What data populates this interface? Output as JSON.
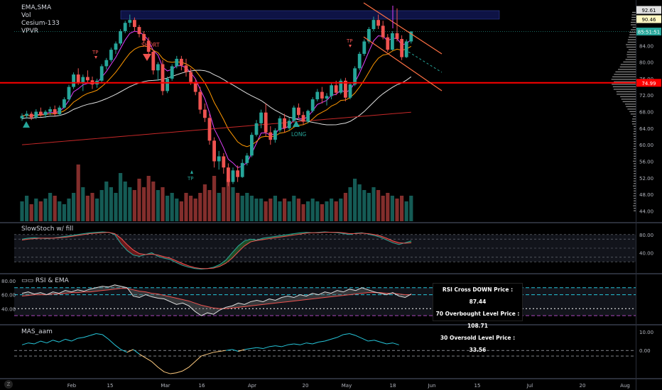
{
  "legend": {
    "indicator_1": "EMA,SMA",
    "indicator_2": "Vol",
    "indicator_3": "Cesium-133",
    "indicator_4": "VPVR",
    "stoch_title": "SlowStoch w/ fill",
    "rsi_title": "RSI & EMA",
    "mas_title": "MAS_aam"
  },
  "badges": {
    "top1": "92.61",
    "top2": "90.46",
    "last": "85:51:51",
    "hline": "74.99"
  },
  "annotations": {
    "tp1": "TP",
    "short": "SHORT",
    "tp2": "TP",
    "long": "LONG",
    "tp3": "TP"
  },
  "info": {
    "line1": "RSI Cross DOWN Price : 87.44",
    "line2": "70 Overbought Level Price : 108.71",
    "line3": "30 Oversold Level Price : 33.56"
  },
  "colors": {
    "up": "#26a69a",
    "down": "#ef5350",
    "hline": "#ff0000",
    "ema_fast": "#e040fb",
    "ema_mid": "#ff9800",
    "sma_white": "#e0e0e0",
    "sma_red": "#c62828",
    "channel": "#ff7043",
    "rsi_level": "#26c6da",
    "rsi_oversold": "#ab47bc",
    "mas_line": "#26c6da"
  },
  "chart_data": {
    "type": "candlestick",
    "x_axis_labels": [
      "Feb",
      "15",
      "Mar",
      "16",
      "Apr",
      "20",
      "May",
      "18",
      "Jun",
      "15",
      "Jul",
      "20",
      "Aug"
    ],
    "price_axis_ticks": [
      "84.00",
      "80.00",
      "76.00",
      "72.00",
      "68.00",
      "64.00",
      "60.00",
      "56.00",
      "52.00",
      "48.00",
      "44.00"
    ],
    "price_range": [
      41.5,
      94
    ],
    "horizontal_level": 74.99,
    "candles": [
      [
        66.4,
        67.6,
        65.8,
        67.0
      ],
      [
        67.0,
        68.2,
        66.3,
        67.5
      ],
      [
        67.5,
        68.0,
        66.0,
        66.6
      ],
      [
        66.6,
        68.6,
        66.2,
        68.0
      ],
      [
        68.0,
        69.0,
        66.8,
        67.2
      ],
      [
        67.2,
        68.4,
        66.5,
        68.0
      ],
      [
        68.0,
        69.2,
        67.2,
        68.6
      ],
      [
        68.6,
        69.5,
        67.0,
        67.4
      ],
      [
        67.4,
        69.5,
        67.0,
        69.0
      ],
      [
        69.0,
        71.5,
        68.8,
        71.0
      ],
      [
        71.0,
        74.5,
        70.5,
        74.0
      ],
      [
        74.0,
        77.5,
        73.5,
        77.0
      ],
      [
        77.0,
        78.5,
        74.5,
        75.0
      ],
      [
        75.0,
        77.0,
        73.0,
        76.4
      ],
      [
        76.4,
        78.0,
        75.0,
        75.6
      ],
      [
        75.6,
        76.5,
        73.5,
        74.6
      ],
      [
        74.6,
        76.0,
        73.8,
        75.5
      ],
      [
        75.5,
        79.5,
        75.0,
        79.0
      ],
      [
        79.0,
        81.0,
        78.2,
        80.5
      ],
      [
        80.5,
        83.5,
        80.0,
        83.0
      ],
      [
        83.0,
        85.0,
        82.0,
        84.5
      ],
      [
        84.5,
        88.0,
        84.0,
        87.5
      ],
      [
        87.5,
        90.0,
        87.0,
        89.5
      ],
      [
        89.5,
        91.5,
        88.5,
        90.2
      ],
      [
        90.2,
        90.8,
        87.5,
        88.5
      ],
      [
        88.5,
        89.0,
        86.0,
        86.8
      ],
      [
        86.8,
        87.5,
        84.5,
        85.2
      ],
      [
        85.2,
        86.0,
        82.0,
        82.5
      ],
      [
        82.5,
        83.0,
        77.0,
        78.0
      ],
      [
        78.0,
        80.0,
        75.5,
        79.5
      ],
      [
        79.5,
        80.5,
        72.0,
        73.0
      ],
      [
        73.0,
        76.5,
        72.5,
        76.0
      ],
      [
        76.0,
        79.5,
        75.5,
        79.0
      ],
      [
        79.0,
        81.5,
        78.5,
        80.8
      ],
      [
        80.8,
        81.5,
        78.0,
        79.2
      ],
      [
        79.2,
        80.8,
        76.5,
        77.6
      ],
      [
        77.6,
        78.5,
        74.5,
        75.2
      ],
      [
        75.2,
        76.0,
        72.0,
        72.8
      ],
      [
        72.8,
        74.0,
        67.5,
        68.5
      ],
      [
        68.5,
        70.0,
        65.5,
        66.5
      ],
      [
        66.5,
        67.5,
        60.0,
        61.0
      ],
      [
        61.0,
        61.8,
        54.5,
        56.0
      ],
      [
        56.0,
        58.5,
        54.0,
        57.2
      ],
      [
        57.2,
        58.0,
        53.0,
        54.5
      ],
      [
        54.5,
        55.5,
        50.0,
        51.0
      ],
      [
        51.0,
        54.5,
        50.5,
        53.8
      ],
      [
        53.8,
        55.0,
        51.0,
        52.2
      ],
      [
        52.2,
        56.5,
        52.0,
        55.6
      ],
      [
        55.6,
        58.0,
        55.0,
        57.4
      ],
      [
        57.4,
        63.0,
        57.0,
        62.4
      ],
      [
        62.4,
        66.0,
        62.0,
        65.2
      ],
      [
        65.2,
        68.5,
        64.0,
        67.8
      ],
      [
        67.8,
        70.0,
        62.0,
        63.0
      ],
      [
        63.0,
        64.5,
        60.0,
        61.2
      ],
      [
        61.2,
        64.0,
        60.5,
        63.5
      ],
      [
        63.5,
        67.0,
        63.0,
        66.4
      ],
      [
        66.4,
        67.5,
        63.0,
        64.0
      ],
      [
        64.0,
        66.5,
        63.5,
        65.8
      ],
      [
        65.8,
        69.5,
        65.5,
        69.0
      ],
      [
        69.0,
        70.0,
        66.5,
        67.2
      ],
      [
        67.2,
        68.0,
        64.8,
        65.6
      ],
      [
        65.6,
        68.5,
        65.2,
        68.2
      ],
      [
        68.2,
        71.5,
        67.8,
        71.0
      ],
      [
        71.0,
        73.5,
        70.5,
        72.8
      ],
      [
        72.8,
        74.0,
        70.0,
        71.2
      ],
      [
        71.2,
        72.5,
        69.5,
        71.8
      ],
      [
        71.8,
        75.0,
        71.0,
        74.4
      ],
      [
        74.4,
        75.5,
        72.0,
        72.6
      ],
      [
        72.6,
        76.0,
        72.2,
        75.5
      ],
      [
        75.5,
        76.2,
        70.5,
        71.4
      ],
      [
        71.4,
        75.0,
        71.0,
        74.6
      ],
      [
        74.6,
        79.0,
        74.2,
        78.5
      ],
      [
        78.5,
        82.5,
        78.0,
        82.0
      ],
      [
        82.0,
        85.5,
        81.5,
        85.0
      ],
      [
        85.0,
        88.5,
        84.5,
        88.0
      ],
      [
        88.0,
        91.0,
        87.5,
        90.2
      ],
      [
        90.2,
        91.5,
        88.0,
        88.8
      ],
      [
        88.8,
        90.0,
        85.5,
        86.0
      ],
      [
        86.0,
        86.8,
        82.5,
        83.0
      ],
      [
        83.0,
        87.5,
        82.8,
        87.0
      ],
      [
        87.0,
        93.0,
        85.0,
        85.6
      ],
      [
        85.6,
        86.5,
        80.5,
        81.2
      ],
      [
        81.2,
        85.5,
        81.0,
        85.0
      ],
      [
        85.0,
        87.5,
        84.5,
        87.4
      ]
    ],
    "volume": [
      3.5,
      4.5,
      3,
      4,
      3.5,
      4,
      5,
      4.5,
      3.5,
      3,
      4,
      5,
      10,
      6,
      4.5,
      5,
      4,
      5.5,
      7,
      6,
      5,
      8.5,
      7,
      6,
      5.5,
      7.5,
      6,
      8,
      7,
      5.5,
      6,
      4.5,
      5,
      4,
      3.5,
      5,
      4.5,
      4,
      5,
      6.5,
      5.5,
      8,
      5,
      6,
      7.5,
      6,
      5,
      4.5,
      5,
      4.5,
      4,
      4,
      3.5,
      4,
      4.5,
      3.5,
      4,
      3.5,
      4.5,
      4,
      3,
      3.5,
      4,
      3.5,
      3,
      3.5,
      4,
      3.5,
      4,
      5,
      6,
      7.5,
      6.5,
      5.5,
      5,
      6,
      5.5,
      4.5,
      5,
      4.5,
      4,
      4.5,
      3.5,
      4.5
    ],
    "stoch_axis_ticks": [
      "80.00",
      "40.00"
    ],
    "stoch_range": [
      0,
      100
    ],
    "stoch_k": [
      70,
      72,
      73,
      72,
      71,
      72,
      74,
      76,
      78,
      80,
      82,
      84,
      85,
      86,
      85,
      80,
      60,
      45,
      35,
      32,
      36,
      40,
      32,
      28,
      25,
      18,
      12,
      8,
      5,
      4,
      5,
      8,
      14,
      24,
      40,
      55,
      66,
      70,
      68,
      72,
      74,
      76,
      78,
      80,
      82,
      84,
      85,
      84,
      85,
      86,
      85,
      84,
      82,
      80,
      83,
      84,
      81,
      78,
      74,
      68,
      62,
      58,
      62,
      66
    ],
    "stoch_d": [
      68,
      70,
      71,
      72,
      72,
      72,
      73,
      74,
      76,
      78,
      80,
      82,
      83,
      84,
      85,
      82,
      72,
      58,
      46,
      38,
      36,
      37,
      35,
      31,
      28,
      22,
      16,
      11,
      7,
      5,
      5,
      6,
      10,
      17,
      28,
      42,
      55,
      64,
      67,
      69,
      71,
      73,
      75,
      77,
      79,
      81,
      83,
      84,
      84,
      85,
      85,
      85,
      84,
      82,
      82,
      83,
      82,
      80,
      77,
      72,
      66,
      62,
      61,
      62
    ],
    "rsi_axis_ticks": [
      "80.00",
      "60.00",
      "40.00"
    ],
    "rsi_range": [
      20,
      88
    ],
    "rsi_levels": [
      70,
      60,
      40,
      30
    ],
    "rsi": [
      62,
      64,
      61,
      63,
      60,
      64,
      62,
      66,
      64,
      67,
      65,
      68,
      70,
      72,
      71,
      74,
      72,
      70,
      58,
      56,
      60,
      57,
      55,
      54,
      50,
      46,
      48,
      44,
      36,
      30,
      34,
      32,
      38,
      42,
      44,
      48,
      46,
      50,
      52,
      50,
      54,
      52,
      56,
      58,
      56,
      60,
      58,
      62,
      60,
      64,
      62,
      66,
      64,
      68,
      66,
      70,
      67,
      64,
      62,
      60,
      63,
      58,
      56,
      61
    ],
    "rsi_ema": [
      58,
      59,
      60,
      60,
      60,
      61,
      61,
      62,
      63,
      63,
      64,
      64,
      65,
      66,
      67,
      68,
      69,
      69,
      67,
      65,
      64,
      62,
      61,
      59,
      57,
      55,
      53,
      51,
      48,
      45,
      43,
      41,
      40,
      40,
      41,
      42,
      43,
      44,
      45,
      46,
      47,
      48,
      49,
      50,
      51,
      52,
      53,
      54,
      55,
      56,
      57,
      58,
      59,
      60,
      61,
      62,
      63,
      63,
      63,
      62,
      62,
      61,
      60,
      60
    ],
    "mas_axis_ticks": [
      "10.00",
      "0.00"
    ],
    "mas_range": [
      -14,
      13
    ],
    "mas": [
      3,
      4,
      3.5,
      5,
      4,
      5.5,
      4.5,
      6,
      5,
      6.5,
      7,
      8,
      9,
      8.5,
      6,
      3,
      0.5,
      -1,
      0.5,
      -2,
      -4,
      -6,
      -9,
      -11.5,
      -12.5,
      -12,
      -11,
      -9,
      -6,
      -3,
      -2,
      -1,
      -0.5,
      0,
      0.5,
      -0.5,
      0.5,
      1,
      1.5,
      1,
      2,
      2.5,
      2,
      3,
      3.5,
      3,
      4,
      3.5,
      4.5,
      5,
      6,
      7,
      8.5,
      9,
      8,
      6.5,
      5,
      5.5,
      4.5,
      3.5,
      4,
      3
    ]
  }
}
